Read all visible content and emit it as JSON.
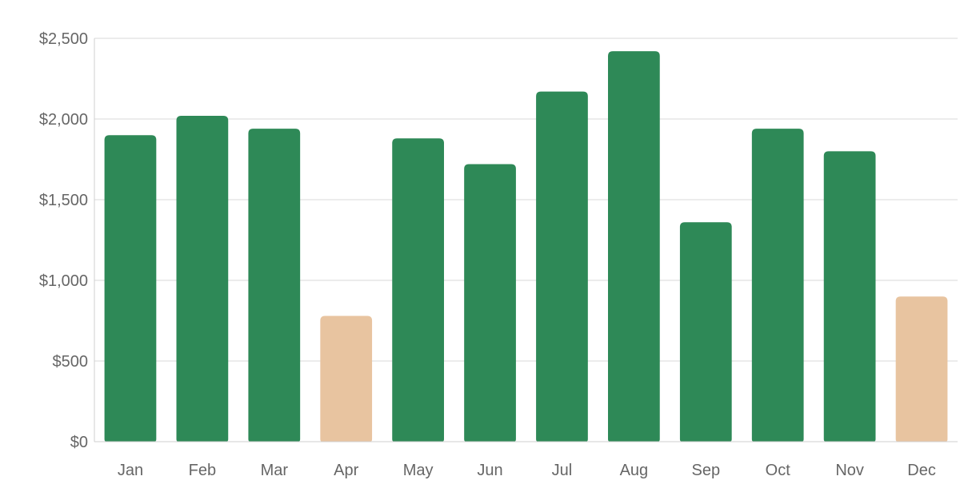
{
  "chart_data": {
    "type": "bar",
    "title": "",
    "xlabel": "",
    "ylabel": "",
    "categories": [
      "Jan",
      "Feb",
      "Mar",
      "Apr",
      "May",
      "Jun",
      "Jul",
      "Aug",
      "Sep",
      "Oct",
      "Nov",
      "Dec"
    ],
    "values": [
      1900,
      2020,
      1940,
      780,
      1880,
      1720,
      2170,
      2420,
      1360,
      1940,
      1800,
      900
    ],
    "ylim": [
      0,
      2500
    ],
    "yticks": [
      0,
      500,
      1000,
      1500,
      2000,
      2500
    ],
    "ytick_labels": [
      "$0",
      "$500",
      "$1,000",
      "$1,500",
      "$2,000",
      "$2,500"
    ],
    "grid": true,
    "legend": "none",
    "colors": {
      "default": "#2e8957",
      "highlight": "#e8c4a0"
    },
    "highlighted_categories": [
      "Apr",
      "Dec"
    ]
  }
}
